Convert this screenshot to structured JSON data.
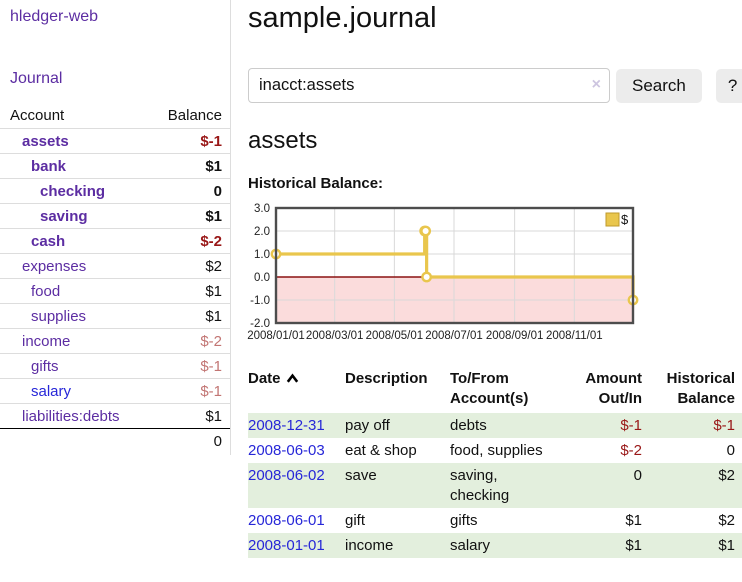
{
  "palette": {
    "purple": "#5c2da2",
    "blue": "#2727d8",
    "text": "#111111",
    "negative_strong": "#991717",
    "negative_muted": "#c27573",
    "gold": "#e9c64d",
    "gold_dark": "#bf9a2c",
    "pink_area": "#fbdcdc",
    "zero_line": "#8b1212",
    "grid": "#d9d9d9",
    "plot_border": "#4d4d4d",
    "row_green": "#e3efdd"
  },
  "sidebar": {
    "brand": "hledger-web",
    "journal_link": "Journal",
    "accounts_table": {
      "headers": {
        "account": "Account",
        "balance": "Balance"
      },
      "rows": [
        {
          "name": "assets",
          "depth": 1,
          "bold": true,
          "name_color": "purple",
          "balance": "$-1",
          "balance_color": "negative_strong",
          "balance_bold": true
        },
        {
          "name": "bank",
          "depth": 2,
          "bold": true,
          "name_color": "purple",
          "balance": "$1",
          "balance_color": "text",
          "balance_bold": true
        },
        {
          "name": "checking",
          "depth": 3,
          "bold": true,
          "name_color": "purple",
          "balance": "0",
          "balance_color": "text",
          "balance_bold": true
        },
        {
          "name": "saving",
          "depth": 3,
          "bold": true,
          "name_color": "purple",
          "balance": "$1",
          "balance_color": "text",
          "balance_bold": true
        },
        {
          "name": "cash",
          "depth": 2,
          "bold": true,
          "name_color": "purple",
          "balance": "$-2",
          "balance_color": "negative_strong",
          "balance_bold": true
        },
        {
          "name": "expenses",
          "depth": 1,
          "bold": false,
          "name_color": "purple",
          "balance": "$2",
          "balance_color": "text",
          "balance_bold": false
        },
        {
          "name": "food",
          "depth": 2,
          "bold": false,
          "name_color": "purple",
          "balance": "$1",
          "balance_color": "text",
          "balance_bold": false
        },
        {
          "name": "supplies",
          "depth": 2,
          "bold": false,
          "name_color": "purple",
          "balance": "$1",
          "balance_color": "text",
          "balance_bold": false
        },
        {
          "name": "income",
          "depth": 1,
          "bold": false,
          "name_color": "purple",
          "balance": "$-2",
          "balance_color": "negative_muted",
          "balance_bold": false
        },
        {
          "name": "gifts",
          "depth": 2,
          "bold": false,
          "name_color": "purple",
          "balance": "$-1",
          "balance_color": "negative_muted",
          "balance_bold": false
        },
        {
          "name": "salary",
          "depth": 2,
          "bold": false,
          "name_color": "blue",
          "balance": "$-1",
          "balance_color": "negative_muted",
          "balance_bold": false
        },
        {
          "name": "liabilities:debts",
          "depth": 1,
          "bold": false,
          "name_color": "purple",
          "balance": "$1",
          "balance_color": "text",
          "balance_bold": false
        }
      ],
      "total": "0"
    }
  },
  "header": {
    "title": "sample.journal"
  },
  "search": {
    "value": "inacct:assets",
    "clear_icon": "×",
    "button_label": "Search",
    "help_label": "?"
  },
  "account_page": {
    "title": "assets",
    "chart_label": "Historical Balance:"
  },
  "chart_data": {
    "type": "line",
    "step": true,
    "title": "Historical Balance:",
    "series": [
      {
        "name": "$",
        "points": [
          {
            "date": "2008-01-01",
            "day": 0,
            "value": 1
          },
          {
            "date": "2008-06-01",
            "day": 152,
            "value": 2
          },
          {
            "date": "2008-06-02",
            "day": 153,
            "value": 2
          },
          {
            "date": "2008-06-03",
            "day": 154,
            "value": 0
          },
          {
            "date": "2008-12-31",
            "day": 365,
            "value": -1
          }
        ]
      }
    ],
    "ylim": [
      -2,
      3
    ],
    "ytick_values": [
      3,
      2,
      1,
      0,
      -1,
      -2
    ],
    "ytick_labels": [
      "3.0",
      "2.0",
      "1.0",
      "0.0",
      "-1.0",
      "-2.0"
    ],
    "xticks": [
      {
        "label": "2008/01/01",
        "day": 0
      },
      {
        "label": "2008/03/01",
        "day": 60
      },
      {
        "label": "2008/05/01",
        "day": 121
      },
      {
        "label": "2008/07/01",
        "day": 182
      },
      {
        "label": "2008/09/01",
        "day": 244
      },
      {
        "label": "2008/11/01",
        "day": 305
      }
    ],
    "x_span_days": 365,
    "legend": {
      "label": "$",
      "position": "top-right"
    },
    "grid": true,
    "negative_region_shaded": true
  },
  "register": {
    "columns": {
      "date": "Date",
      "description": "Description",
      "tofrom_line1": "To/From",
      "tofrom_line2": "Account(s)",
      "amount_line1": "Amount",
      "amount_line2": "Out/In",
      "balance_line1": "Historical",
      "balance_line2": "Balance"
    },
    "sort_column": "date",
    "sort_direction": "ascending",
    "rows": [
      {
        "date": "2008-12-31",
        "description": "pay off",
        "accounts": "debts",
        "amount": "$-1",
        "amount_color": "negative_strong",
        "balance": "$-1",
        "balance_color": "negative_strong",
        "shaded": true
      },
      {
        "date": "2008-06-03",
        "description": "eat & shop",
        "accounts": "food, supplies",
        "amount": "$-2",
        "amount_color": "negative_strong",
        "balance": "0",
        "balance_color": "text",
        "shaded": false
      },
      {
        "date": "2008-06-02",
        "description": "save",
        "accounts": "saving, checking",
        "amount": "0",
        "amount_color": "text",
        "balance": "$2",
        "balance_color": "text",
        "shaded": true
      },
      {
        "date": "2008-06-01",
        "description": "gift",
        "accounts": "gifts",
        "amount": "$1",
        "amount_color": "text",
        "balance": "$2",
        "balance_color": "text",
        "shaded": false
      },
      {
        "date": "2008-01-01",
        "description": "income",
        "accounts": "salary",
        "amount": "$1",
        "amount_color": "text",
        "balance": "$1",
        "balance_color": "text",
        "shaded": true
      }
    ]
  }
}
